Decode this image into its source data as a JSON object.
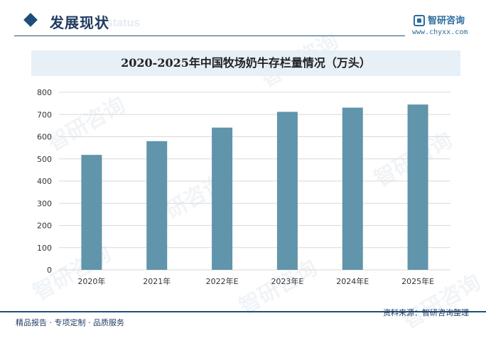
{
  "header": {
    "section_title": "发展现状",
    "section_ghost": "status",
    "brand_name": "智研咨询",
    "brand_url": "www.chyxx.com"
  },
  "footer": {
    "left_text": "精品报告 · 专项定制 · 品质服务",
    "right_text": "资料来源：智研咨询整理"
  },
  "watermark": "智研咨询",
  "colors": {
    "bar": "#6095ab",
    "accent": "#1f4e79",
    "title_band": "#e6f0f6"
  },
  "chart_data": {
    "type": "bar",
    "title": "2020-2025年中国牧场奶牛存栏量情况（万头）",
    "categories": [
      "2020年",
      "2021年",
      "2022年E",
      "2023年E",
      "2024年E",
      "2025年E"
    ],
    "values": [
      518,
      580,
      641,
      712,
      731,
      745
    ],
    "ylim": [
      0,
      800
    ],
    "yticks": [
      0,
      100,
      200,
      300,
      400,
      500,
      600,
      700,
      800
    ],
    "grid": true,
    "xlabel": "",
    "ylabel": ""
  }
}
